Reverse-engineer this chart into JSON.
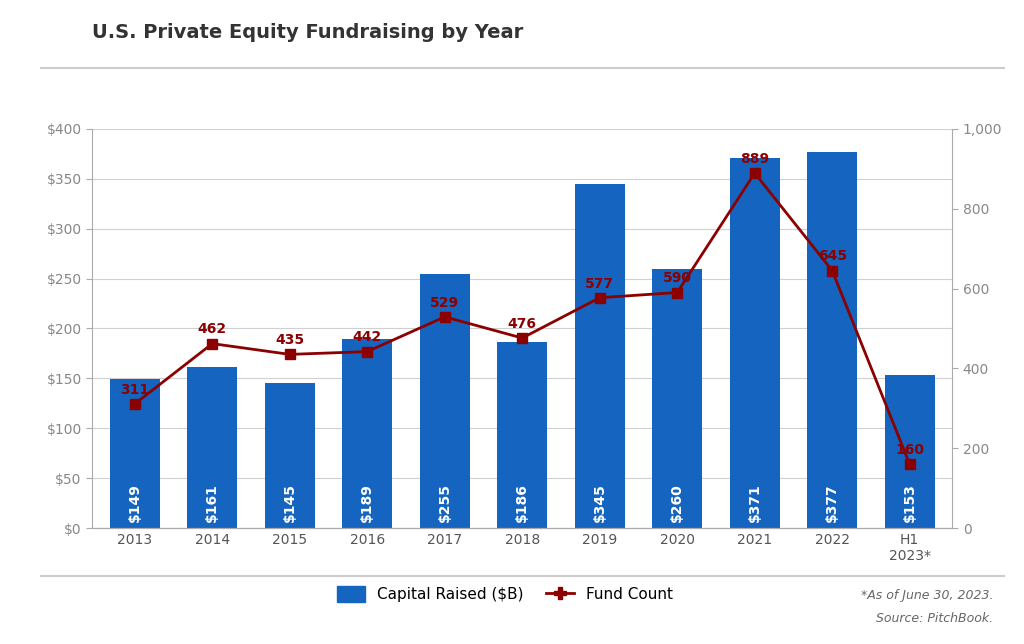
{
  "title": "U.S. Private Equity Fundraising by Year",
  "categories": [
    "2013",
    "2014",
    "2015",
    "2016",
    "2017",
    "2018",
    "2019",
    "2020",
    "2021",
    "2022",
    "H1\n2023*"
  ],
  "capital_raised": [
    149,
    161,
    145,
    189,
    255,
    186,
    345,
    260,
    371,
    377,
    153
  ],
  "fund_count": [
    311,
    462,
    435,
    442,
    529,
    476,
    577,
    590,
    889,
    645,
    160
  ],
  "bar_color": "#1565c0",
  "line_color": "#8b0000",
  "bar_label_color": "#ffffff",
  "left_ylim": [
    0,
    400
  ],
  "left_yticks": [
    0,
    50,
    100,
    150,
    200,
    250,
    300,
    350,
    400
  ],
  "left_yticklabels": [
    "$0",
    "$50",
    "$100",
    "$150",
    "$200",
    "$250",
    "$300",
    "$350",
    "$400"
  ],
  "right_ylim": [
    0,
    1000
  ],
  "right_yticks": [
    0,
    200,
    400,
    600,
    800,
    1000
  ],
  "right_yticklabels": [
    "0",
    "200",
    "400",
    "600",
    "800",
    "1,000"
  ],
  "legend_bar_label": "Capital Raised ($B)",
  "legend_line_label": "Fund Count",
  "footnote_line1": "*As of June 30, 2023.",
  "footnote_line2": "Source: PitchBook.",
  "background_color": "#ffffff",
  "plot_background_color": "#ffffff",
  "title_fontsize": 14,
  "tick_fontsize": 10,
  "bar_label_fontsize": 10,
  "fund_count_label_fontsize": 10,
  "legend_fontsize": 11,
  "grid_color": "#d0d0d0",
  "spine_color": "#aaaaaa"
}
